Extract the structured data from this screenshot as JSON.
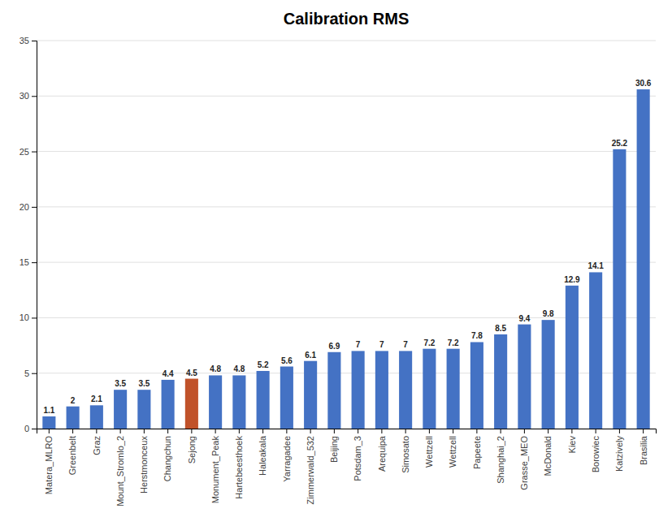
{
  "chart_data": {
    "type": "bar",
    "title": "Calibration RMS",
    "categories": [
      "Matera_MLRO",
      "Greenbelt",
      "Graz",
      "Mount_Stromlo_2",
      "Herstmonceux",
      "Changchun",
      "Sejong",
      "Monument_Peak",
      "Hartebeesthoek",
      "Haleakala",
      "Yarragadee",
      "Zimmerwald_532",
      "Beijing",
      "Potsdam_3",
      "Arequipa",
      "Simosato",
      "Wettzell",
      "Wettzell",
      "Papeete",
      "Shanghai_2",
      "Grasse_MEO",
      "McDonald",
      "Kiev",
      "Borowiec",
      "Katzively",
      "Brasilia"
    ],
    "values": [
      1.1,
      2,
      2.1,
      3.5,
      3.5,
      4.4,
      4.5,
      4.8,
      4.8,
      5.2,
      5.6,
      6.1,
      6.9,
      7,
      7,
      7,
      7.2,
      7.2,
      7.8,
      8.5,
      9.4,
      9.8,
      12.9,
      14.1,
      25.2,
      30.6
    ],
    "colors": [
      "#4472C4",
      "#4472C4",
      "#4472C4",
      "#4472C4",
      "#4472C4",
      "#4472C4",
      "#C0522A",
      "#4472C4",
      "#4472C4",
      "#4472C4",
      "#4472C4",
      "#4472C4",
      "#4472C4",
      "#4472C4",
      "#4472C4",
      "#4472C4",
      "#4472C4",
      "#4472C4",
      "#4472C4",
      "#4472C4",
      "#4472C4",
      "#4472C4",
      "#4472C4",
      "#4472C4",
      "#4472C4",
      "#4472C4"
    ],
    "ylim": [
      0,
      35
    ],
    "yticks": [
      0,
      5,
      10,
      15,
      20,
      25,
      30,
      35
    ],
    "grid": true,
    "data_labels": true
  }
}
